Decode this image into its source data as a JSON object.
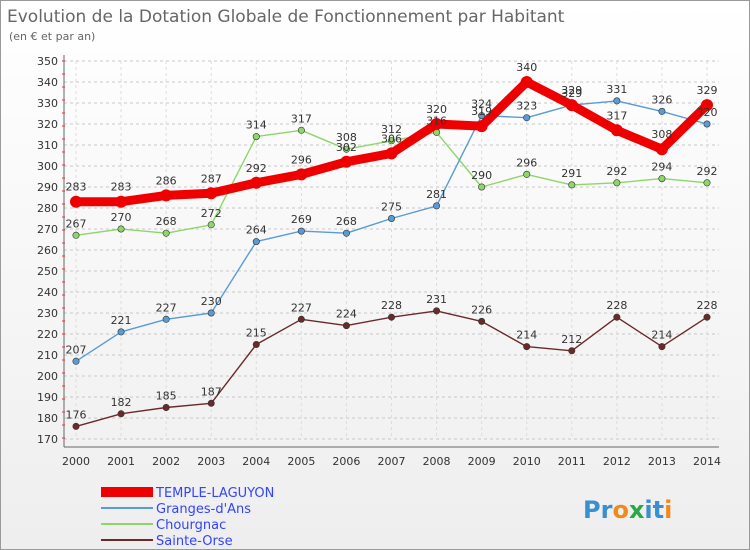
{
  "chart_data": {
    "type": "line",
    "title": "Evolution de la Dotation Globale de Fonctionnement par Habitant",
    "subtitle": "(en € et par an)",
    "xlabel": "",
    "ylabel": "",
    "x": [
      "2000",
      "2001",
      "2002",
      "2003",
      "2004",
      "2005",
      "2006",
      "2007",
      "2008",
      "2009",
      "2010",
      "2011",
      "2012",
      "2013",
      "2014"
    ],
    "ylim": [
      170,
      350
    ],
    "ytick_step": 10,
    "grid": "horizontal-dashed",
    "legend_position": "bottom-left",
    "series": [
      {
        "name": "TEMPLE-LAGUYON",
        "color": "#ee0000",
        "values": [
          283,
          283,
          286,
          287,
          292,
          296,
          302,
          306,
          320,
          319,
          340,
          329,
          317,
          308,
          329
        ]
      },
      {
        "name": "Granges-d'Ans",
        "color": "#5b9bd5",
        "values": [
          207,
          221,
          227,
          230,
          264,
          269,
          268,
          275,
          281,
          324,
          323,
          329,
          331,
          326,
          320
        ]
      },
      {
        "name": "Chourgnac",
        "color": "#8fd66a",
        "values": [
          267,
          270,
          268,
          272,
          314,
          317,
          308,
          312,
          316,
          290,
          296,
          291,
          292,
          294,
          292
        ]
      },
      {
        "name": "Sainte-Orse",
        "color": "#6b2a2a",
        "values": [
          176,
          182,
          185,
          187,
          215,
          227,
          224,
          228,
          231,
          226,
          214,
          212,
          228,
          214,
          228
        ]
      }
    ]
  },
  "logo": {
    "text": "Proxiti",
    "letters": [
      "P",
      "r",
      "o",
      "x",
      "i",
      "t",
      "i"
    ],
    "colors": [
      "#3a8fd0",
      "#3a8fd0",
      "#f08a1c",
      "#2aa84a",
      "#3a8fd0",
      "#3a8fd0",
      "#f08a1c"
    ]
  }
}
